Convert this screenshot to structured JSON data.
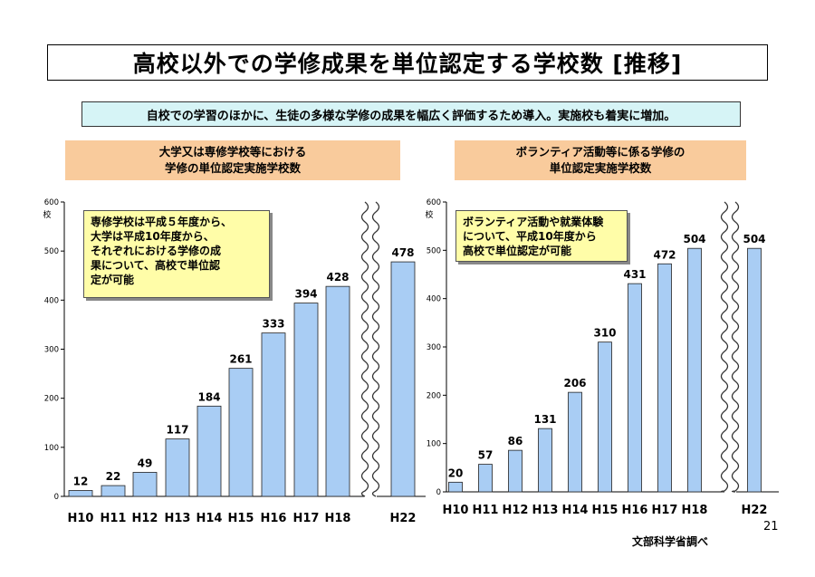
{
  "title": "高校以外での学修成果を単位認定する学校数 [推移]",
  "summary": "自校での学習のほかに、生徒の多様な学修の成果を幅広く評価するため導入。実施校も着実に増加。",
  "left_panel": {
    "heading_line1": "大学又は専修学校等における",
    "heading_line2": "学修の単位認定実施学校数",
    "note_lines": [
      "専修学校は平成５年度から、",
      "大学は平成10年度から、",
      "それぞれにおける学修の成",
      "果について、高校で単位認",
      "定が可能"
    ]
  },
  "right_panel": {
    "heading_line1": "ボランティア活動等に係る学修の",
    "heading_line2": "単位認定実施学校数",
    "note_lines": [
      "ボランティア活動や就業体験",
      "について、平成10年度から",
      "高校で単位認定が可能"
    ]
  },
  "source": "文部科学省調べ",
  "page_number": "21",
  "chart_data": [
    {
      "type": "bar",
      "categories": [
        "H10",
        "H11",
        "H12",
        "H13",
        "H14",
        "H15",
        "H16",
        "H17",
        "H18",
        "H22"
      ],
      "values": [
        12,
        22,
        49,
        117,
        184,
        261,
        333,
        394,
        428,
        478
      ],
      "y_unit": "校",
      "ylim": [
        0,
        600
      ],
      "yticks": [
        0,
        100,
        200,
        300,
        400,
        500,
        600
      ],
      "axis_break_before": "H22",
      "bar_color": "#a9cdf4"
    },
    {
      "type": "bar",
      "categories": [
        "H10",
        "H11",
        "H12",
        "H13",
        "H14",
        "H15",
        "H16",
        "H17",
        "H18",
        "H22"
      ],
      "values": [
        20,
        57,
        86,
        131,
        206,
        310,
        431,
        472,
        504,
        504
      ],
      "y_unit": "校",
      "ylim": [
        0,
        600
      ],
      "yticks": [
        0,
        100,
        200,
        300,
        400,
        500,
        600
      ],
      "axis_break_before": "H22",
      "bar_color": "#a9cdf4"
    }
  ]
}
